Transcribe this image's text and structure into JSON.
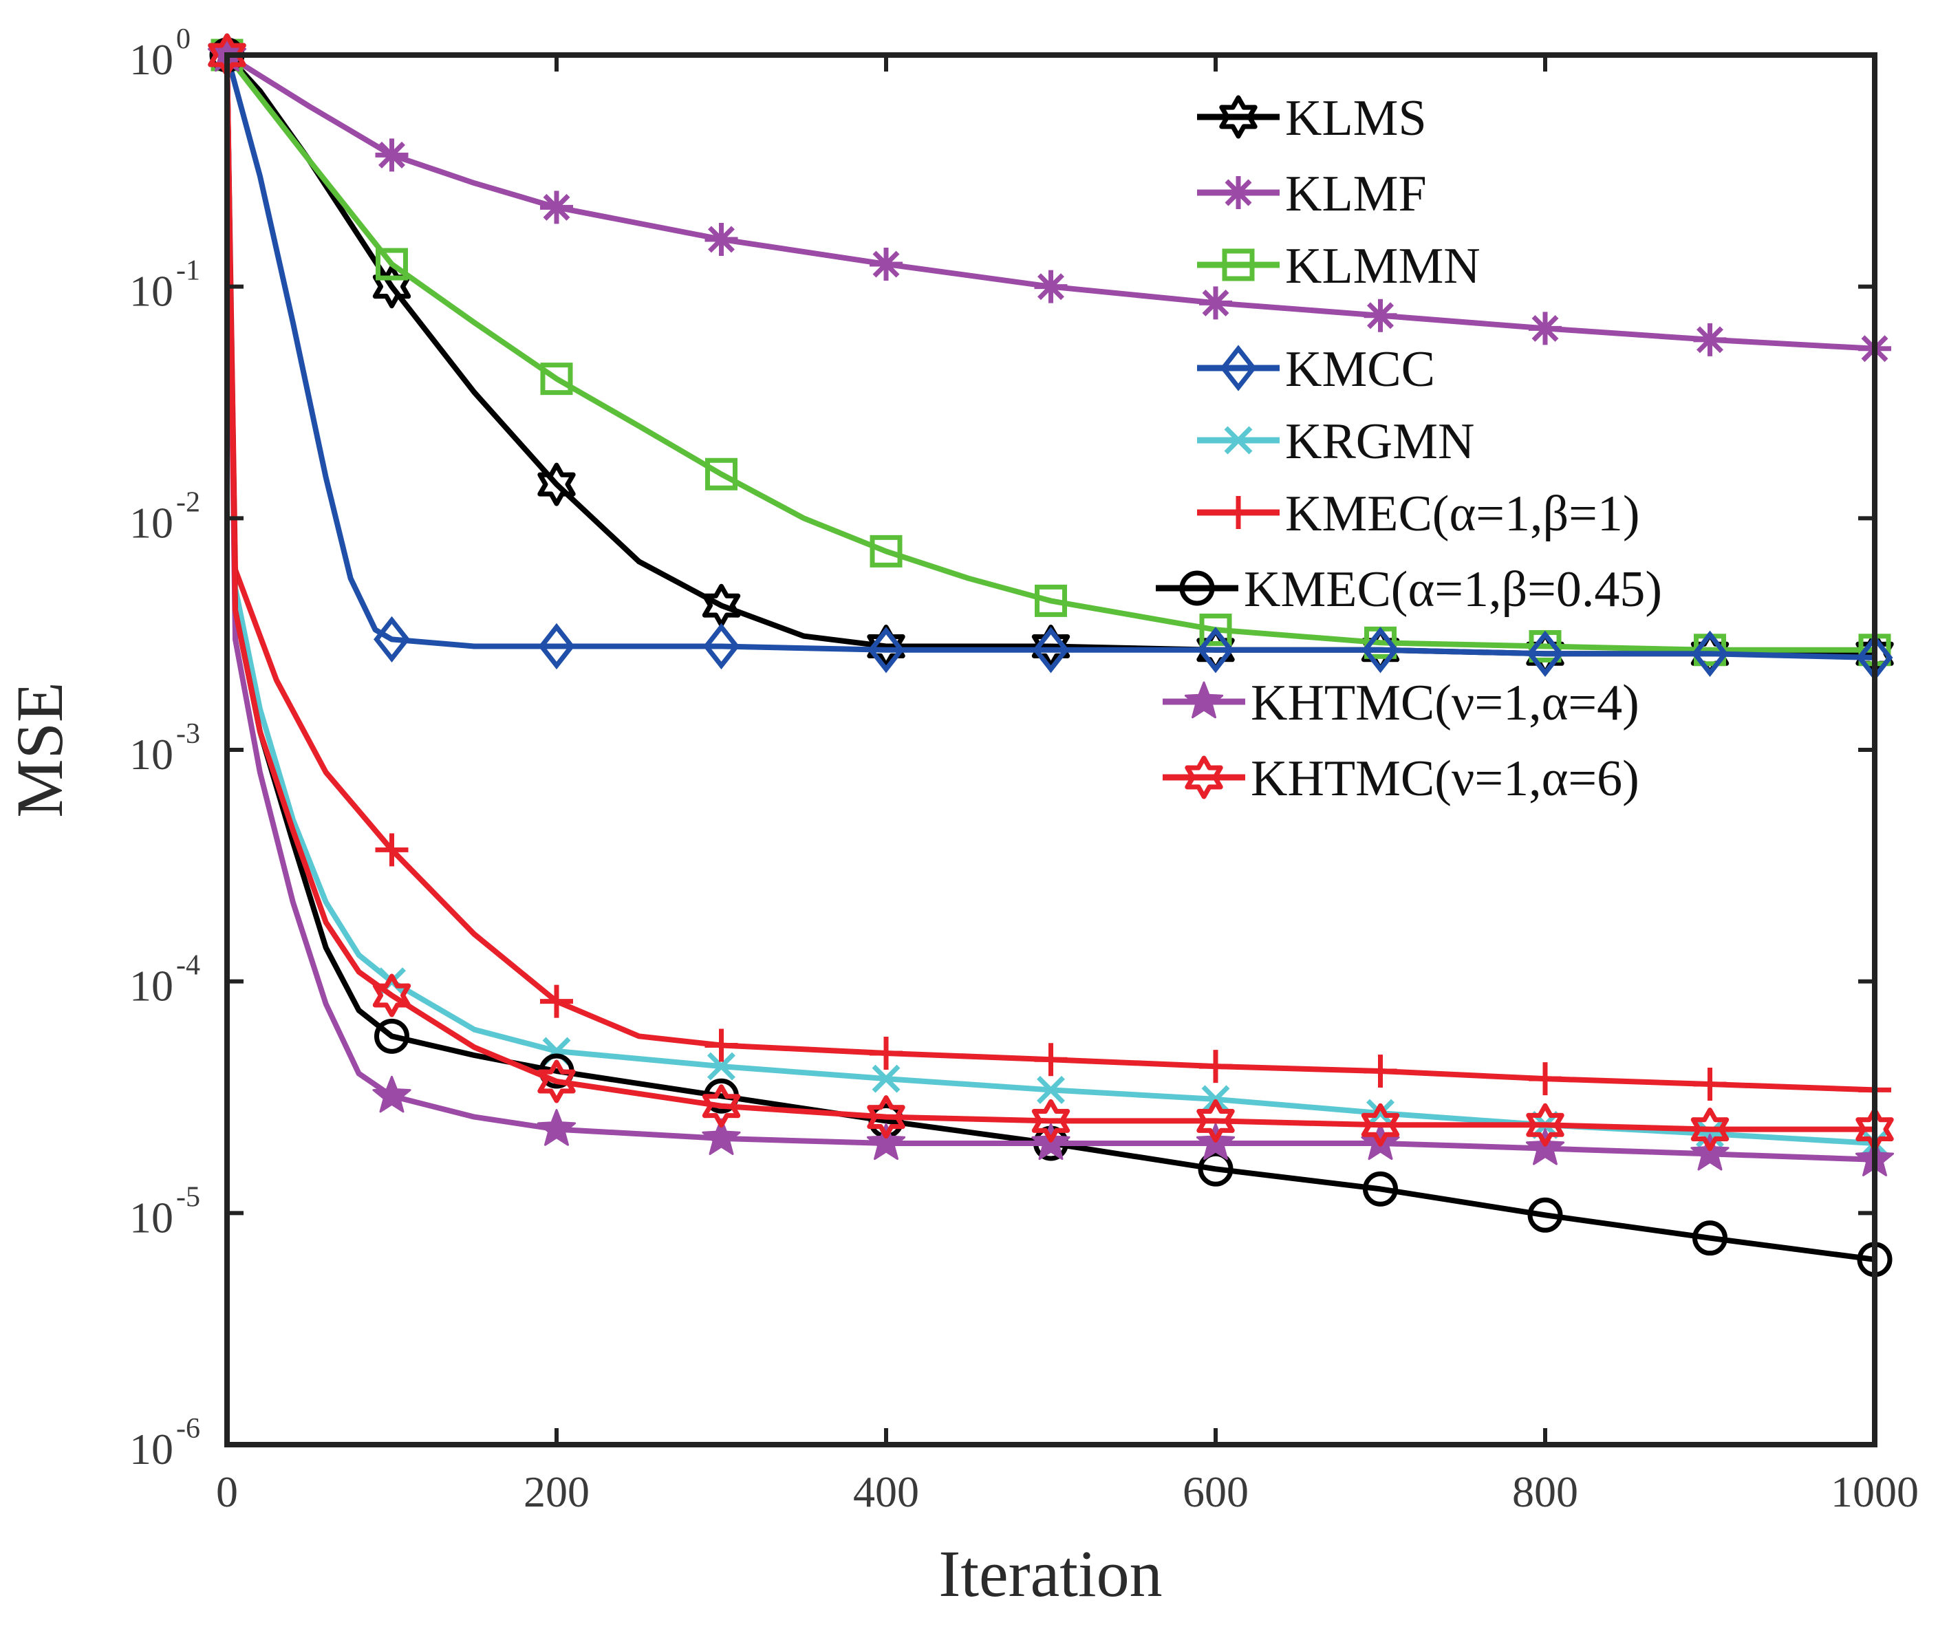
{
  "chart_data": {
    "type": "line",
    "title": "",
    "xlabel": "Iteration",
    "ylabel": "MSE",
    "xlim": [
      0,
      1000
    ],
    "ylim": [
      1e-06,
      1
    ],
    "yscale": "log",
    "grid": false,
    "legend_position": "top-right",
    "x_ticks": [
      "0",
      "200",
      "400",
      "600",
      "800",
      "1000"
    ],
    "y_ticks": [
      {
        "base": "10",
        "exp": "0"
      },
      {
        "base": "10",
        "exp": "-1"
      },
      {
        "base": "10",
        "exp": "-2"
      },
      {
        "base": "10",
        "exp": "-3"
      },
      {
        "base": "10",
        "exp": "-4"
      },
      {
        "base": "10",
        "exp": "-5"
      },
      {
        "base": "10",
        "exp": "-6"
      }
    ],
    "series": [
      {
        "name": "KLMS",
        "color": "#000000",
        "marker": "hexagram",
        "points": [
          [
            0,
            1
          ],
          [
            20,
            0.7
          ],
          [
            50,
            0.35
          ],
          [
            100,
            0.1
          ],
          [
            150,
            0.035
          ],
          [
            200,
            0.014
          ],
          [
            250,
            0.0065
          ],
          [
            300,
            0.0042
          ],
          [
            350,
            0.0031
          ],
          [
            400,
            0.0028
          ],
          [
            500,
            0.0028
          ],
          [
            600,
            0.0027
          ],
          [
            700,
            0.0027
          ],
          [
            800,
            0.0026
          ],
          [
            900,
            0.0026
          ],
          [
            1000,
            0.0026
          ]
        ],
        "marker_x": [
          0,
          100,
          200,
          300,
          400,
          500,
          600,
          700,
          800,
          900,
          1000
        ]
      },
      {
        "name": "KLMF",
        "color": "#9b4aa6",
        "marker": "asterisk",
        "points": [
          [
            0,
            1
          ],
          [
            50,
            0.6
          ],
          [
            100,
            0.37
          ],
          [
            150,
            0.28
          ],
          [
            200,
            0.22
          ],
          [
            300,
            0.16
          ],
          [
            400,
            0.125
          ],
          [
            500,
            0.1
          ],
          [
            600,
            0.085
          ],
          [
            700,
            0.075
          ],
          [
            800,
            0.066
          ],
          [
            900,
            0.059
          ],
          [
            1000,
            0.054
          ]
        ],
        "marker_x": [
          0,
          100,
          200,
          300,
          400,
          500,
          600,
          700,
          800,
          900,
          1000
        ]
      },
      {
        "name": "KLMMN",
        "color": "#5cbf3a",
        "marker": "square",
        "points": [
          [
            0,
            1
          ],
          [
            50,
            0.35
          ],
          [
            100,
            0.125
          ],
          [
            150,
            0.07
          ],
          [
            200,
            0.04
          ],
          [
            250,
            0.025
          ],
          [
            300,
            0.0155
          ],
          [
            350,
            0.01
          ],
          [
            400,
            0.0072
          ],
          [
            450,
            0.0055
          ],
          [
            500,
            0.0044
          ],
          [
            600,
            0.0033
          ],
          [
            700,
            0.0029
          ],
          [
            800,
            0.0028
          ],
          [
            900,
            0.0027
          ],
          [
            1000,
            0.0027
          ]
        ],
        "marker_x": [
          0,
          100,
          200,
          300,
          400,
          500,
          600,
          700,
          800,
          900,
          1000
        ]
      },
      {
        "name": "KMCC",
        "color": "#1f4fa8",
        "marker": "diamond",
        "points": [
          [
            0,
            1
          ],
          [
            20,
            0.3
          ],
          [
            40,
            0.07
          ],
          [
            60,
            0.015
          ],
          [
            75,
            0.0055
          ],
          [
            90,
            0.0033
          ],
          [
            100,
            0.003
          ],
          [
            150,
            0.0028
          ],
          [
            200,
            0.0028
          ],
          [
            300,
            0.0028
          ],
          [
            400,
            0.0027
          ],
          [
            500,
            0.0027
          ],
          [
            600,
            0.0027
          ],
          [
            700,
            0.0027
          ],
          [
            800,
            0.0026
          ],
          [
            900,
            0.0026
          ],
          [
            1000,
            0.0025
          ]
        ],
        "marker_x": [
          100,
          200,
          300,
          400,
          500,
          600,
          700,
          800,
          900,
          1000
        ]
      },
      {
        "name": "KRGMN",
        "color": "#5ac8d2",
        "marker": "x",
        "points": [
          [
            0,
            1
          ],
          [
            5,
            0.005
          ],
          [
            20,
            0.0015
          ],
          [
            40,
            0.0005
          ],
          [
            60,
            0.00022
          ],
          [
            80,
            0.00013
          ],
          [
            100,
            0.0001
          ],
          [
            150,
            6.2e-05
          ],
          [
            200,
            5e-05
          ],
          [
            300,
            4.3e-05
          ],
          [
            400,
            3.8e-05
          ],
          [
            500,
            3.4e-05
          ],
          [
            600,
            3.1e-05
          ],
          [
            700,
            2.7e-05
          ],
          [
            800,
            2.4e-05
          ],
          [
            900,
            2.2e-05
          ],
          [
            1000,
            2e-05
          ]
        ],
        "marker_x": [
          0,
          100,
          200,
          300,
          400,
          500,
          600,
          700,
          800,
          900,
          1000
        ]
      },
      {
        "name": "KMEC(α=1,β=1)",
        "color": "#e8202a",
        "marker": "plus",
        "points": [
          [
            0,
            1
          ],
          [
            5,
            0.006
          ],
          [
            30,
            0.002
          ],
          [
            60,
            0.0008
          ],
          [
            100,
            0.00037
          ],
          [
            150,
            0.00016
          ],
          [
            200,
            8.2e-05
          ],
          [
            250,
            5.8e-05
          ],
          [
            300,
            5.3e-05
          ],
          [
            400,
            4.9e-05
          ],
          [
            500,
            4.6e-05
          ],
          [
            600,
            4.3e-05
          ],
          [
            700,
            4.1e-05
          ],
          [
            800,
            3.8e-05
          ],
          [
            900,
            3.6e-05
          ],
          [
            1000,
            3.4e-05
          ]
        ],
        "marker_x": [
          0,
          100,
          200,
          300,
          400,
          500,
          600,
          700,
          800,
          900,
          1000
        ]
      },
      {
        "name": "KMEC(α=1,β=0.45)",
        "color": "#000000",
        "marker": "circle",
        "points": [
          [
            0,
            1
          ],
          [
            5,
            0.004
          ],
          [
            20,
            0.0012
          ],
          [
            40,
            0.0004
          ],
          [
            60,
            0.00014
          ],
          [
            80,
            7.5e-05
          ],
          [
            100,
            5.8e-05
          ],
          [
            150,
            4.8e-05
          ],
          [
            200,
            4.1e-05
          ],
          [
            300,
            3.2e-05
          ],
          [
            400,
            2.5e-05
          ],
          [
            500,
            2e-05
          ],
          [
            600,
            1.55e-05
          ],
          [
            700,
            1.27e-05
          ],
          [
            800,
            9.8e-06
          ],
          [
            900,
            7.8e-06
          ],
          [
            1000,
            6.3e-06
          ]
        ],
        "marker_x": [
          0,
          100,
          200,
          300,
          400,
          500,
          600,
          700,
          800,
          900,
          1000
        ]
      },
      {
        "name": "KHTMC(ν=1,α=4)",
        "color": "#9b4aa6",
        "marker": "pentagram",
        "points": [
          [
            0,
            1
          ],
          [
            5,
            0.003
          ],
          [
            20,
            0.0008
          ],
          [
            40,
            0.00022
          ],
          [
            60,
            8e-05
          ],
          [
            80,
            4e-05
          ],
          [
            100,
            3.2e-05
          ],
          [
            150,
            2.6e-05
          ],
          [
            200,
            2.3e-05
          ],
          [
            300,
            2.1e-05
          ],
          [
            400,
            2e-05
          ],
          [
            500,
            2e-05
          ],
          [
            600,
            2e-05
          ],
          [
            700,
            2e-05
          ],
          [
            800,
            1.9e-05
          ],
          [
            900,
            1.8e-05
          ],
          [
            1000,
            1.7e-05
          ]
        ],
        "marker_x": [
          0,
          100,
          200,
          300,
          400,
          500,
          600,
          700,
          800,
          900,
          1000
        ]
      },
      {
        "name": "KHTMC(ν=1,α=6)",
        "color": "#e8202a",
        "marker": "hexagram",
        "points": [
          [
            0,
            1
          ],
          [
            5,
            0.004
          ],
          [
            20,
            0.0012
          ],
          [
            40,
            0.00045
          ],
          [
            60,
            0.00018
          ],
          [
            80,
            0.00011
          ],
          [
            100,
            8.7e-05
          ],
          [
            150,
            5.2e-05
          ],
          [
            200,
            3.7e-05
          ],
          [
            300,
            2.9e-05
          ],
          [
            400,
            2.6e-05
          ],
          [
            500,
            2.5e-05
          ],
          [
            600,
            2.5e-05
          ],
          [
            700,
            2.4e-05
          ],
          [
            800,
            2.4e-05
          ],
          [
            900,
            2.3e-05
          ],
          [
            1000,
            2.3e-05
          ]
        ],
        "marker_x": [
          0,
          100,
          200,
          300,
          400,
          500,
          600,
          700,
          800,
          900,
          1000
        ]
      }
    ]
  }
}
